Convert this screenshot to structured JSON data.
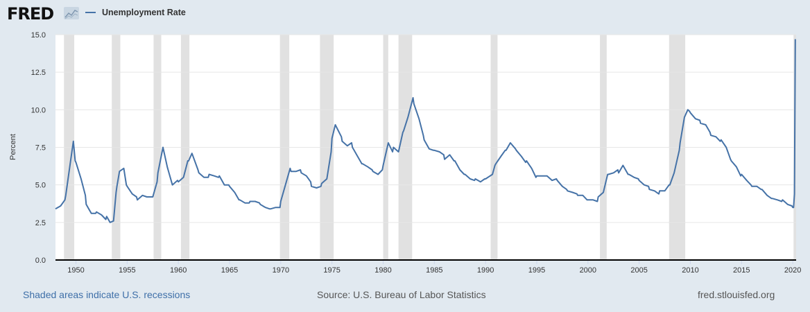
{
  "header": {
    "logo": "FRED",
    "logo_icon": "line-chart-icon"
  },
  "footer": {
    "recession_note": "Shaded areas indicate U.S. recessions",
    "source": "Source: U.S. Bureau of Labor Statistics",
    "site": "fred.stlouisfed.org"
  },
  "chart_data": {
    "type": "line",
    "title": "",
    "ylabel": "Percent",
    "xlabel": "",
    "xlim": [
      1948.0,
      2020.33
    ],
    "ylim": [
      0,
      15
    ],
    "grid": true,
    "legend_position": "top-left",
    "yticks": [
      "0.0",
      "2.5",
      "5.0",
      "7.5",
      "10.0",
      "12.5",
      "15.0"
    ],
    "xticks": [
      "1950",
      "1955",
      "1960",
      "1965",
      "1970",
      "1975",
      "1980",
      "1985",
      "1990",
      "1995",
      "2000",
      "2005",
      "2010",
      "2015",
      "2020"
    ],
    "series": [
      {
        "name": "Unemployment Rate",
        "color": "#4572a7",
        "points": [
          [
            1948.0,
            3.4
          ],
          [
            1948.5,
            3.6
          ],
          [
            1948.92,
            4.0
          ],
          [
            1949.0,
            4.3
          ],
          [
            1949.5,
            6.7
          ],
          [
            1949.75,
            7.9
          ],
          [
            1949.92,
            6.6
          ],
          [
            1950.0,
            6.5
          ],
          [
            1950.5,
            5.4
          ],
          [
            1950.92,
            4.3
          ],
          [
            1951.0,
            3.7
          ],
          [
            1951.5,
            3.1
          ],
          [
            1951.92,
            3.1
          ],
          [
            1952.0,
            3.2
          ],
          [
            1952.5,
            3.0
          ],
          [
            1952.92,
            2.7
          ],
          [
            1953.0,
            2.9
          ],
          [
            1953.33,
            2.5
          ],
          [
            1953.67,
            2.6
          ],
          [
            1953.92,
            4.5
          ],
          [
            1954.0,
            4.9
          ],
          [
            1954.25,
            5.9
          ],
          [
            1954.67,
            6.1
          ],
          [
            1954.92,
            5.0
          ],
          [
            1955.0,
            4.9
          ],
          [
            1955.5,
            4.4
          ],
          [
            1955.92,
            4.2
          ],
          [
            1956.0,
            4.0
          ],
          [
            1956.5,
            4.3
          ],
          [
            1956.92,
            4.2
          ],
          [
            1957.0,
            4.2
          ],
          [
            1957.5,
            4.2
          ],
          [
            1957.92,
            5.2
          ],
          [
            1958.0,
            5.8
          ],
          [
            1958.5,
            7.5
          ],
          [
            1958.92,
            6.2
          ],
          [
            1959.0,
            6.0
          ],
          [
            1959.42,
            5.0
          ],
          [
            1959.92,
            5.3
          ],
          [
            1960.0,
            5.2
          ],
          [
            1960.5,
            5.5
          ],
          [
            1960.92,
            6.6
          ],
          [
            1961.0,
            6.6
          ],
          [
            1961.33,
            7.1
          ],
          [
            1961.92,
            6.0
          ],
          [
            1962.0,
            5.8
          ],
          [
            1962.5,
            5.5
          ],
          [
            1962.92,
            5.5
          ],
          [
            1963.0,
            5.7
          ],
          [
            1963.5,
            5.6
          ],
          [
            1963.92,
            5.5
          ],
          [
            1964.0,
            5.6
          ],
          [
            1964.5,
            5.0
          ],
          [
            1964.92,
            5.0
          ],
          [
            1965.0,
            4.9
          ],
          [
            1965.5,
            4.5
          ],
          [
            1965.92,
            4.0
          ],
          [
            1966.0,
            4.0
          ],
          [
            1966.5,
            3.8
          ],
          [
            1966.92,
            3.8
          ],
          [
            1967.0,
            3.9
          ],
          [
            1967.5,
            3.9
          ],
          [
            1967.92,
            3.8
          ],
          [
            1968.0,
            3.7
          ],
          [
            1968.5,
            3.5
          ],
          [
            1968.92,
            3.4
          ],
          [
            1969.0,
            3.4
          ],
          [
            1969.5,
            3.5
          ],
          [
            1969.92,
            3.5
          ],
          [
            1970.0,
            3.9
          ],
          [
            1970.42,
            4.9
          ],
          [
            1970.92,
            6.1
          ],
          [
            1971.0,
            5.9
          ],
          [
            1971.5,
            5.9
          ],
          [
            1971.92,
            6.0
          ],
          [
            1972.0,
            5.8
          ],
          [
            1972.5,
            5.6
          ],
          [
            1972.92,
            5.2
          ],
          [
            1973.0,
            4.9
          ],
          [
            1973.5,
            4.8
          ],
          [
            1973.92,
            4.9
          ],
          [
            1974.0,
            5.1
          ],
          [
            1974.5,
            5.4
          ],
          [
            1974.92,
            7.2
          ],
          [
            1975.0,
            8.1
          ],
          [
            1975.33,
            9.0
          ],
          [
            1975.92,
            8.2
          ],
          [
            1976.0,
            7.9
          ],
          [
            1976.5,
            7.6
          ],
          [
            1976.92,
            7.8
          ],
          [
            1977.0,
            7.5
          ],
          [
            1977.5,
            6.9
          ],
          [
            1977.92,
            6.4
          ],
          [
            1978.0,
            6.4
          ],
          [
            1978.5,
            6.2
          ],
          [
            1978.92,
            6.0
          ],
          [
            1979.0,
            5.9
          ],
          [
            1979.5,
            5.7
          ],
          [
            1979.92,
            6.0
          ],
          [
            1980.0,
            6.3
          ],
          [
            1980.5,
            7.8
          ],
          [
            1980.92,
            7.2
          ],
          [
            1981.0,
            7.5
          ],
          [
            1981.5,
            7.2
          ],
          [
            1981.92,
            8.5
          ],
          [
            1982.0,
            8.6
          ],
          [
            1982.42,
            9.5
          ],
          [
            1982.92,
            10.8
          ],
          [
            1983.0,
            10.4
          ],
          [
            1983.5,
            9.4
          ],
          [
            1983.92,
            8.3
          ],
          [
            1984.0,
            8.0
          ],
          [
            1984.5,
            7.4
          ],
          [
            1984.92,
            7.3
          ],
          [
            1985.0,
            7.3
          ],
          [
            1985.5,
            7.2
          ],
          [
            1985.92,
            7.0
          ],
          [
            1986.0,
            6.7
          ],
          [
            1986.5,
            7.0
          ],
          [
            1986.92,
            6.6
          ],
          [
            1987.0,
            6.6
          ],
          [
            1987.5,
            6.0
          ],
          [
            1987.92,
            5.7
          ],
          [
            1988.0,
            5.7
          ],
          [
            1988.5,
            5.4
          ],
          [
            1988.92,
            5.3
          ],
          [
            1989.0,
            5.4
          ],
          [
            1989.5,
            5.2
          ],
          [
            1989.92,
            5.4
          ],
          [
            1990.0,
            5.4
          ],
          [
            1990.67,
            5.7
          ],
          [
            1990.92,
            6.3
          ],
          [
            1991.0,
            6.4
          ],
          [
            1991.5,
            6.9
          ],
          [
            1991.92,
            7.3
          ],
          [
            1992.0,
            7.3
          ],
          [
            1992.42,
            7.8
          ],
          [
            1992.92,
            7.4
          ],
          [
            1993.0,
            7.3
          ],
          [
            1993.5,
            6.9
          ],
          [
            1993.92,
            6.5
          ],
          [
            1994.0,
            6.6
          ],
          [
            1994.5,
            6.1
          ],
          [
            1994.92,
            5.5
          ],
          [
            1995.0,
            5.6
          ],
          [
            1995.5,
            5.6
          ],
          [
            1995.92,
            5.6
          ],
          [
            1996.0,
            5.6
          ],
          [
            1996.5,
            5.3
          ],
          [
            1996.92,
            5.4
          ],
          [
            1997.0,
            5.3
          ],
          [
            1997.5,
            4.9
          ],
          [
            1997.92,
            4.7
          ],
          [
            1998.0,
            4.6
          ],
          [
            1998.5,
            4.5
          ],
          [
            1998.92,
            4.4
          ],
          [
            1999.0,
            4.3
          ],
          [
            1999.5,
            4.3
          ],
          [
            1999.92,
            4.0
          ],
          [
            2000.0,
            4.0
          ],
          [
            2000.5,
            4.0
          ],
          [
            2000.92,
            3.9
          ],
          [
            2001.0,
            4.2
          ],
          [
            2001.5,
            4.5
          ],
          [
            2001.92,
            5.7
          ],
          [
            2002.0,
            5.7
          ],
          [
            2002.5,
            5.8
          ],
          [
            2002.92,
            6.0
          ],
          [
            2003.0,
            5.8
          ],
          [
            2003.42,
            6.3
          ],
          [
            2003.92,
            5.7
          ],
          [
            2004.0,
            5.7
          ],
          [
            2004.5,
            5.5
          ],
          [
            2004.92,
            5.4
          ],
          [
            2005.0,
            5.3
          ],
          [
            2005.5,
            5.0
          ],
          [
            2005.92,
            4.9
          ],
          [
            2006.0,
            4.7
          ],
          [
            2006.5,
            4.6
          ],
          [
            2006.92,
            4.4
          ],
          [
            2007.0,
            4.6
          ],
          [
            2007.5,
            4.6
          ],
          [
            2007.92,
            5.0
          ],
          [
            2008.0,
            5.0
          ],
          [
            2008.42,
            5.8
          ],
          [
            2008.92,
            7.3
          ],
          [
            2009.0,
            7.8
          ],
          [
            2009.42,
            9.5
          ],
          [
            2009.75,
            10.0
          ],
          [
            2009.92,
            9.9
          ],
          [
            2010.0,
            9.8
          ],
          [
            2010.5,
            9.4
          ],
          [
            2010.92,
            9.3
          ],
          [
            2011.0,
            9.1
          ],
          [
            2011.5,
            9.0
          ],
          [
            2011.92,
            8.5
          ],
          [
            2012.0,
            8.3
          ],
          [
            2012.5,
            8.2
          ],
          [
            2012.92,
            7.9
          ],
          [
            2013.0,
            8.0
          ],
          [
            2013.5,
            7.5
          ],
          [
            2013.92,
            6.7
          ],
          [
            2014.0,
            6.6
          ],
          [
            2014.5,
            6.2
          ],
          [
            2014.92,
            5.6
          ],
          [
            2015.0,
            5.7
          ],
          [
            2015.5,
            5.3
          ],
          [
            2015.92,
            5.0
          ],
          [
            2016.0,
            4.9
          ],
          [
            2016.5,
            4.9
          ],
          [
            2016.92,
            4.7
          ],
          [
            2017.0,
            4.7
          ],
          [
            2017.5,
            4.3
          ],
          [
            2017.92,
            4.1
          ],
          [
            2018.0,
            4.1
          ],
          [
            2018.5,
            4.0
          ],
          [
            2018.92,
            3.9
          ],
          [
            2019.0,
            4.0
          ],
          [
            2019.5,
            3.7
          ],
          [
            2019.92,
            3.6
          ],
          [
            2020.0,
            3.5
          ],
          [
            2020.08,
            3.5
          ],
          [
            2020.17,
            4.4
          ],
          [
            2020.25,
            14.7
          ]
        ]
      }
    ],
    "recessions": [
      [
        1948.83,
        1949.83
      ],
      [
        1953.5,
        1954.33
      ],
      [
        1957.58,
        1958.33
      ],
      [
        1960.25,
        1961.08
      ],
      [
        1969.92,
        1970.83
      ],
      [
        1973.83,
        1975.17
      ],
      [
        1980.0,
        1980.5
      ],
      [
        1981.5,
        1982.83
      ],
      [
        1990.5,
        1991.17
      ],
      [
        2001.17,
        2001.83
      ],
      [
        2007.92,
        2009.5
      ],
      [
        2020.08,
        2020.33
      ]
    ],
    "recession_color": "#e1e1e1"
  }
}
